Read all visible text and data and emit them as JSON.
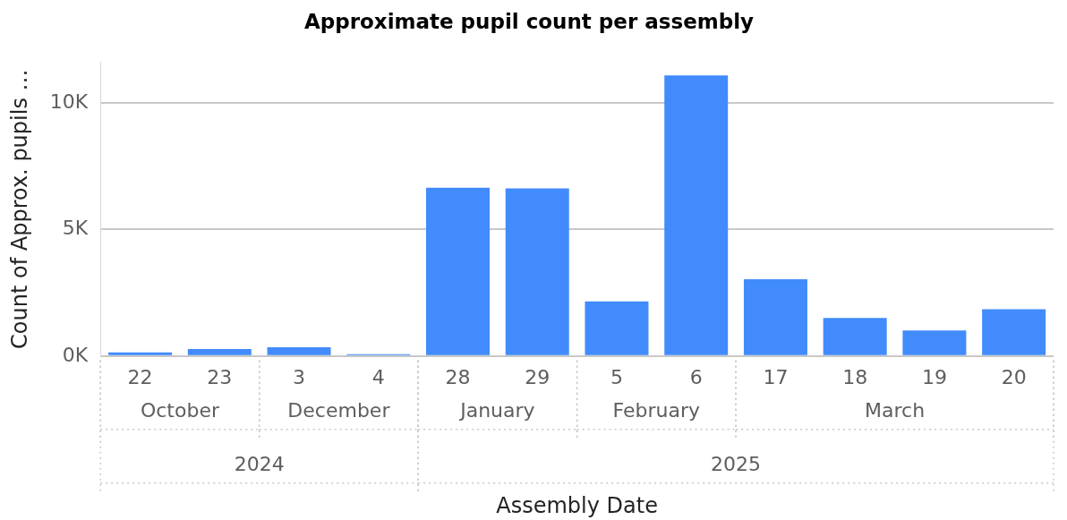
{
  "chart_data": {
    "type": "bar",
    "title": "Approximate pupil count per assembly",
    "xlabel": "Assembly Date",
    "ylabel": "Count of Approx. pupils …",
    "categories": [
      "22",
      "23",
      "3",
      "4",
      "28",
      "29",
      "5",
      "6",
      "17",
      "18",
      "19",
      "20"
    ],
    "values": [
      140,
      280,
      350,
      70,
      6650,
      6620,
      2160,
      11080,
      3030,
      1500,
      1010,
      1850
    ],
    "color": "#418bfc",
    "ylim": [
      0,
      11600
    ],
    "yticks": [
      {
        "value": 0,
        "label": "0K"
      },
      {
        "value": 5000,
        "label": "5K"
      },
      {
        "value": 10000,
        "label": "10K"
      }
    ],
    "grid": "y",
    "legend": false,
    "annotations": [
      "October",
      "December",
      "January",
      "February",
      "March",
      "2024",
      "2025"
    ]
  }
}
